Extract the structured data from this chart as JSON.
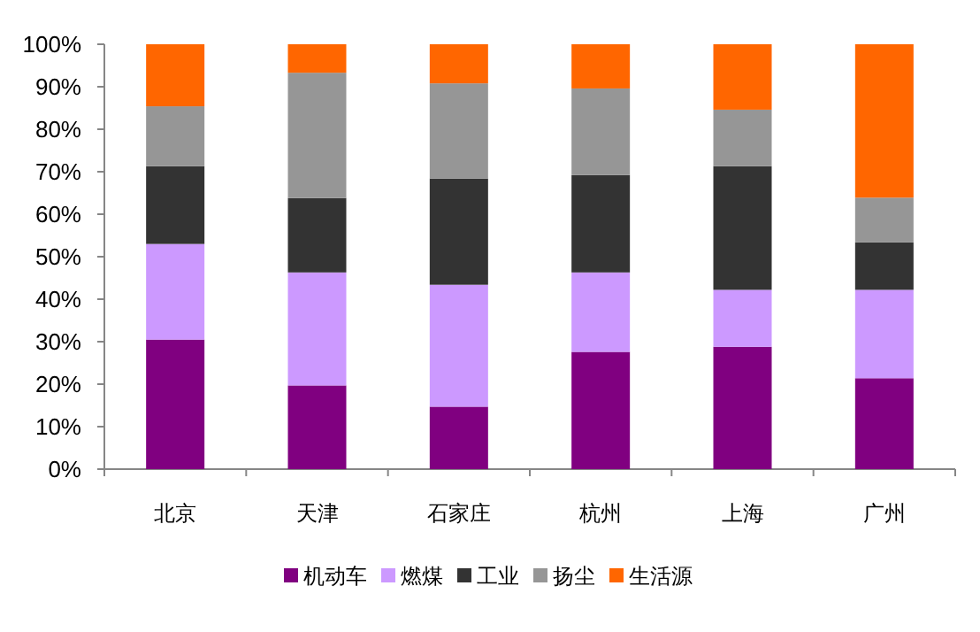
{
  "chart_data": {
    "type": "bar",
    "stacked": true,
    "categories": [
      "北京",
      "天津",
      "石家庄",
      "杭州",
      "上海",
      "广州"
    ],
    "series": [
      {
        "name": "机动车",
        "color": "#800080",
        "values": [
          30.5,
          19.7,
          14.7,
          27.6,
          28.8,
          21.4
        ]
      },
      {
        "name": "燃煤",
        "color": "#cc99ff",
        "values": [
          22.5,
          26.6,
          28.7,
          18.7,
          13.4,
          20.8
        ]
      },
      {
        "name": "工业",
        "color": "#333333",
        "values": [
          18.3,
          17.5,
          25.0,
          22.9,
          29.1,
          11.2
        ]
      },
      {
        "name": "扬尘",
        "color": "#969696",
        "values": [
          14.1,
          29.5,
          22.4,
          20.4,
          13.3,
          10.5
        ]
      },
      {
        "name": "生活源",
        "color": "#ff6600",
        "values": [
          14.6,
          6.7,
          9.2,
          10.4,
          15.4,
          36.1
        ]
      }
    ],
    "ylim": [
      0,
      100
    ],
    "yticks": [
      {
        "value": 0,
        "label": "0%"
      },
      {
        "value": 10,
        "label": "10%"
      },
      {
        "value": 20,
        "label": "20%"
      },
      {
        "value": 30,
        "label": "30%"
      },
      {
        "value": 40,
        "label": "40%"
      },
      {
        "value": 50,
        "label": "50%"
      },
      {
        "value": 60,
        "label": "60%"
      },
      {
        "value": 70,
        "label": "70%"
      },
      {
        "value": 80,
        "label": "80%"
      },
      {
        "value": 90,
        "label": "90%"
      },
      {
        "value": 100,
        "label": "100%"
      }
    ],
    "legend": "bottom"
  }
}
